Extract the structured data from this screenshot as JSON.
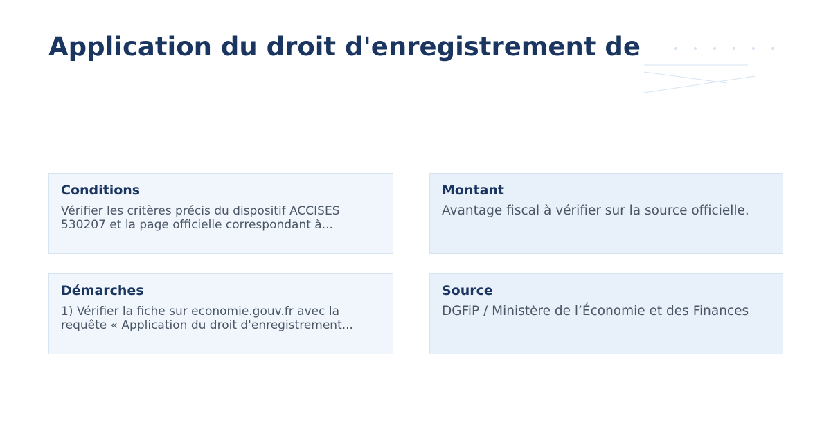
{
  "title": "Application du droit d'enregistrement de",
  "cards": [
    {
      "heading": "Conditions",
      "body": "Vérifier les critères précis du dispositif ACCISES 530207 et la page officielle correspondant à..."
    },
    {
      "heading": "Montant",
      "body": "Avantage fiscal à vérifier sur la source officielle."
    },
    {
      "heading": "Démarches",
      "body": "1) Vérifier la fiche sur economie.gouv.fr avec la requête « Application du droit d'enregistrement..."
    },
    {
      "heading": "Source",
      "body": "DGFiP / Ministère de l’Économie et des Finances"
    }
  ],
  "colors": {
    "title": "#1a355f",
    "card_left_bg": "#f0f6fb",
    "card_right_bg": "#e8f0fa",
    "decor": "#d5e3f2"
  }
}
